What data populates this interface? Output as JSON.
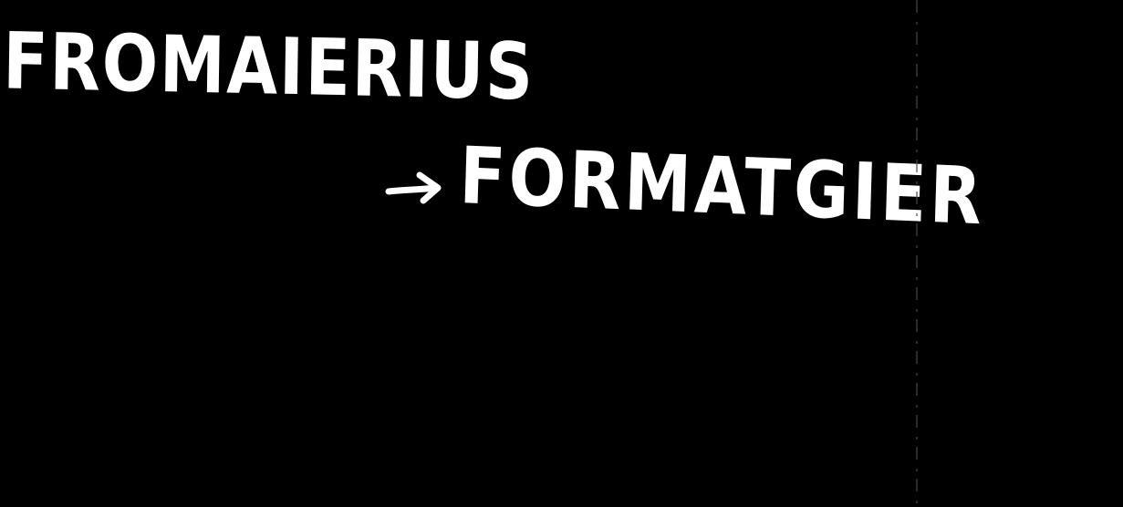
{
  "note": {
    "line1": "FROMAIERIUS",
    "line2": "FORMATGIER",
    "arrow_icon": "right-arrow-icon",
    "ink_color": "#ffffff",
    "background_color": "#000000"
  }
}
